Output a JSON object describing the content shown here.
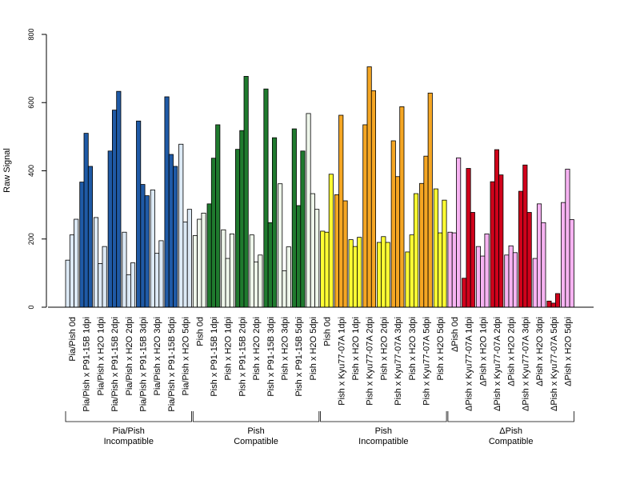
{
  "chart_data": {
    "type": "bar",
    "ylabel": "Raw Signal",
    "ylim": [
      0,
      800
    ],
    "yticks": [
      0,
      200,
      400,
      600,
      800
    ],
    "grid": false,
    "legend": "none",
    "categories": [
      "Pia/Pish 0d",
      "Pia/Pish x P91-15B 1dpi",
      "Pia/Pish x H2O 1dpi",
      "Pia/Pish x P91-15B 2dpi",
      "Pia/Pish x H2O 2dpi",
      "Pia/Pish x P91-15B 3dpi",
      "Pia/Pish x H2O 3dpi",
      "Pia/Pish x P91-15B 5dpi",
      "Pia/Pish x H2O 5dpi",
      "Pish 0d",
      "Pish x P91-15B 1dpi",
      "Pish x H2O 1dpi",
      "Pish x P91-15B 2dpi",
      "Pish x H2O 2dpi",
      "Pish x P91-15B 3dpi",
      "Pish x H2O 3dpi",
      "Pish x P91-15B 5dpi",
      "Pish x H2O 5dpi",
      "Pish 0d",
      "Pish x Kyu77-07A 1dpi",
      "Pish x H2O 1dpi",
      "Pish x Kyu77-07A 2dpi",
      "Pish x H2O 2dpi",
      "Pish x Kyu77-07A 3dpi",
      "Pish x H2O 3dpi",
      "Pish x Kyu77-07A 5dpi",
      "Pish x H2O 5dpi",
      "ΔPish 0d",
      "ΔPish x Kyu77-07A 1dpi",
      "ΔPish x H2O 1dpi",
      "ΔPish x Kyu77-07A 2dpi",
      "ΔPish x H2O 2dpi",
      "ΔPish x Kyu77-07A 3dpi",
      "ΔPish x H2O 3dpi",
      "ΔPish x Kyu77-07A 5dpi",
      "ΔPish x H2O 5dpi"
    ],
    "category_colors": [
      "#dce9f5",
      "#1f5aa6",
      "#dce9f5",
      "#1f5aa6",
      "#dce9f5",
      "#1f5aa6",
      "#dce9f5",
      "#1f5aa6",
      "#dce9f5",
      "#eef6ea",
      "#1f7a2e",
      "#eef6ea",
      "#1f7a2e",
      "#eef6ea",
      "#1f7a2e",
      "#eef6ea",
      "#1f7a2e",
      "#eef6ea",
      "#ffff33",
      "#f5a623",
      "#ffff33",
      "#f5a623",
      "#ffff33",
      "#f5a623",
      "#ffff33",
      "#f5a623",
      "#ffff33",
      "#f7b3f2",
      "#d0021b",
      "#f7b3f2",
      "#d0021b",
      "#f7b3f2",
      "#d0021b",
      "#f7b3f2",
      "#d0021b",
      "#f7b3f2"
    ],
    "values": [
      [
        138,
        212,
        258
      ],
      [
        367,
        510,
        413
      ],
      [
        263,
        128,
        178
      ],
      [
        458,
        578,
        633
      ],
      [
        220,
        95,
        130
      ],
      [
        546,
        360,
        327
      ],
      [
        344,
        158,
        195
      ],
      [
        617,
        448,
        413
      ],
      [
        478,
        250,
        287
      ],
      [
        210,
        258,
        276
      ],
      [
        303,
        437,
        535
      ],
      [
        227,
        143,
        215
      ],
      [
        463,
        518,
        677
      ],
      [
        212,
        133,
        153
      ],
      [
        640,
        248,
        497
      ],
      [
        362,
        107,
        177
      ],
      [
        523,
        298,
        458
      ],
      [
        568,
        333,
        287
      ],
      [
        223,
        220,
        390
      ],
      [
        330,
        563,
        312
      ],
      [
        198,
        178,
        205
      ],
      [
        535,
        705,
        635
      ],
      [
        190,
        207,
        190
      ],
      [
        488,
        383,
        588
      ],
      [
        162,
        212,
        333
      ],
      [
        363,
        443,
        628
      ],
      [
        347,
        218,
        314
      ],
      [
        220,
        218,
        438
      ],
      [
        85,
        407,
        278
      ],
      [
        178,
        150,
        215
      ],
      [
        368,
        462,
        388
      ],
      [
        153,
        180,
        160
      ],
      [
        340,
        417,
        278
      ],
      [
        143,
        303,
        248
      ],
      [
        18,
        12,
        40
      ],
      [
        307,
        405,
        257
      ]
    ],
    "groups": [
      {
        "label": [
          "Pia/Pish",
          "Incompatible"
        ],
        "start": 0,
        "end": 8
      },
      {
        "label": [
          "Pish",
          "Compatible"
        ],
        "start": 9,
        "end": 17
      },
      {
        "label": [
          "Pish",
          "Incompatible"
        ],
        "start": 18,
        "end": 26
      },
      {
        "label": [
          "ΔPish",
          "Compatible"
        ],
        "start": 27,
        "end": 35
      }
    ]
  }
}
